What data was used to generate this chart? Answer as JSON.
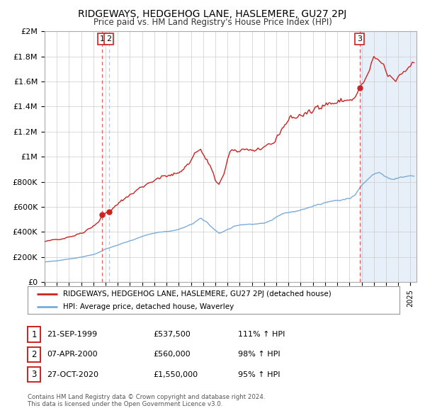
{
  "title": "RIDGEWAYS, HEDGEHOG LANE, HASLEMERE, GU27 2PJ",
  "subtitle": "Price paid vs. HM Land Registry's House Price Index (HPI)",
  "red_line_label": "RIDGEWAYS, HEDGEHOG LANE, HASLEMERE, GU27 2PJ (detached house)",
  "blue_line_label": "HPI: Average price, detached house, Waverley",
  "xmin": 1995.0,
  "xmax": 2025.5,
  "ymin": 0,
  "ymax": 2000000,
  "yticks": [
    0,
    200000,
    400000,
    600000,
    800000,
    1000000,
    1200000,
    1400000,
    1600000,
    1800000,
    2000000
  ],
  "ytick_labels": [
    "£0",
    "£200K",
    "£400K",
    "£600K",
    "£800K",
    "£1M",
    "£1.2M",
    "£1.4M",
    "£1.6M",
    "£1.8M",
    "£2M"
  ],
  "sale_points": [
    {
      "year": 1999.72,
      "price": 537500,
      "label": "1"
    },
    {
      "year": 2000.27,
      "price": 560000,
      "label": "2"
    },
    {
      "year": 2020.83,
      "price": 1550000,
      "label": "3"
    }
  ],
  "vline_x1": 1999.72,
  "vline_x2": 2000.27,
  "vline_x3": 2020.83,
  "shade_start": 2020.83,
  "shade_end": 2025.5,
  "table_rows": [
    {
      "num": "1",
      "date": "21-SEP-1999",
      "price": "£537,500",
      "hpi": "111% ↑ HPI"
    },
    {
      "num": "2",
      "date": "07-APR-2000",
      "price": "£560,000",
      "hpi": "98% ↑ HPI"
    },
    {
      "num": "3",
      "date": "27-OCT-2020",
      "price": "£1,550,000",
      "hpi": "95% ↑ HPI"
    }
  ],
  "footnote1": "Contains HM Land Registry data © Crown copyright and database right 2024.",
  "footnote2": "This data is licensed under the Open Government Licence v3.0.",
  "red_color": "#cc2222",
  "blue_color": "#7aacda",
  "vline_color": "#dd4444",
  "shade_color": "#ddeeff",
  "background_color": "#ffffff",
  "grid_color": "#cccccc",
  "border_color": "#aaaaaa"
}
